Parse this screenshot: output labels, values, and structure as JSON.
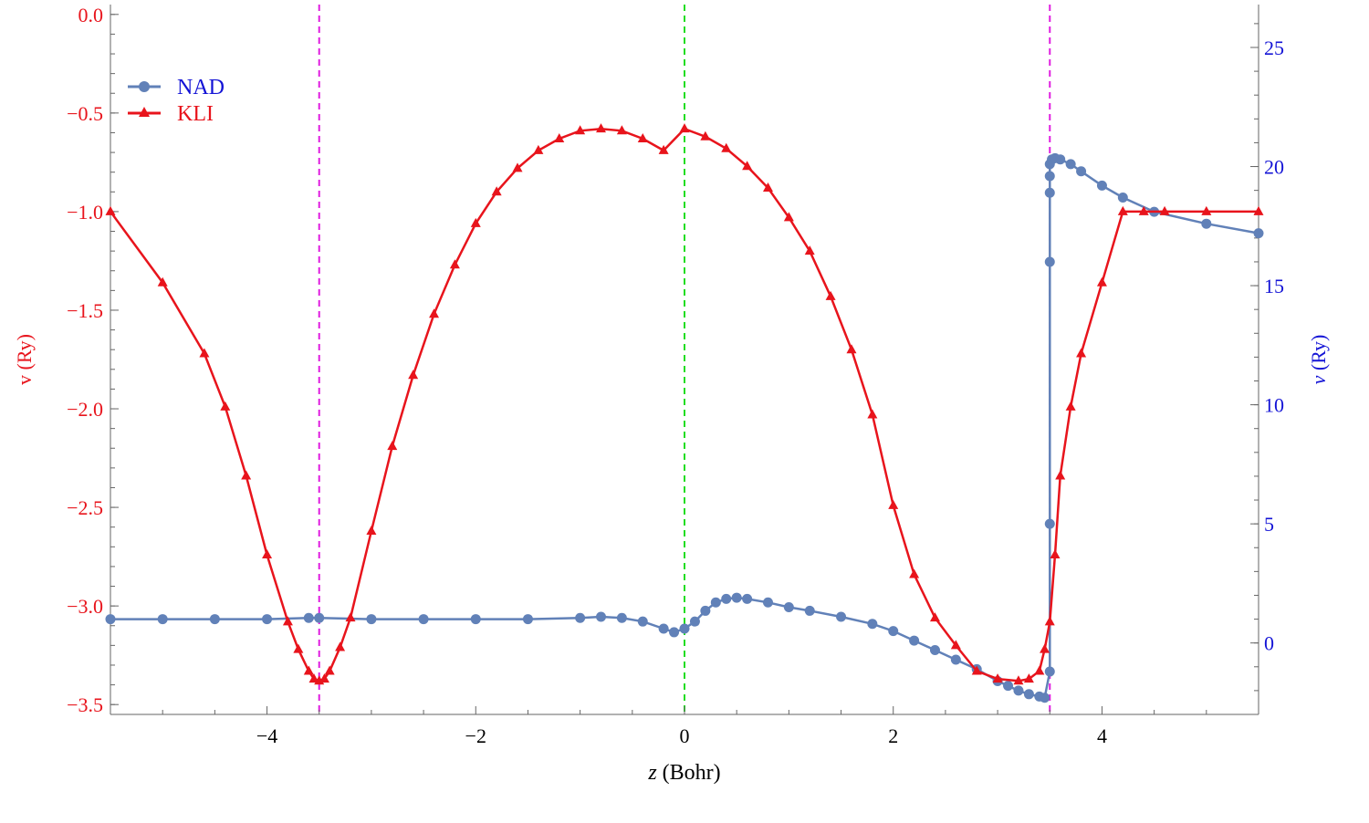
{
  "chart_data": {
    "type": "line",
    "xlabel_italic": "z",
    "xlabel_rest": " (Bohr)",
    "ylabel_left": "v (Ry)",
    "ylabel_right_italic": "v",
    "ylabel_right_rest": " (Ry)",
    "xlim": [
      -5.5,
      5.5
    ],
    "ylim_left": [
      -3.55,
      0.05
    ],
    "ylim_right": [
      -3.0,
      26.8
    ],
    "x_ticks": [
      -4,
      -2,
      0,
      2,
      4
    ],
    "x_tick_labels": [
      "−4",
      "−2",
      "0",
      "2",
      "4"
    ],
    "y_left_ticks": [
      0.0,
      -0.5,
      -1.0,
      -1.5,
      -2.0,
      -2.5,
      -3.0,
      -3.5
    ],
    "y_left_tick_labels": [
      "0.0",
      "−0.5",
      "−1.0",
      "−1.5",
      "−2.0",
      "−2.5",
      "−3.0",
      "−3.5"
    ],
    "y_right_ticks": [
      0,
      5,
      10,
      15,
      20,
      25
    ],
    "y_right_tick_labels": [
      "0",
      "5",
      "10",
      "15",
      "20",
      "25"
    ],
    "vertical_lines": [
      {
        "x": -3.5,
        "color": "#e01de0"
      },
      {
        "x": 0.0,
        "color": "#22dd22"
      },
      {
        "x": 3.5,
        "color": "#e01de0"
      }
    ],
    "legend": {
      "position": "top-left"
    },
    "series": [
      {
        "name": "NAD",
        "axis": "right",
        "color": "#6181b8",
        "marker": "circle",
        "x": [
          -5.5,
          -5.0,
          -4.5,
          -4.0,
          -3.6,
          -3.5,
          -3.0,
          -2.5,
          -2.0,
          -1.5,
          -1.0,
          -0.8,
          -0.6,
          -0.4,
          -0.2,
          -0.1,
          0.0,
          0.1,
          0.2,
          0.3,
          0.4,
          0.5,
          0.6,
          0.8,
          1.0,
          1.2,
          1.5,
          1.8,
          2.0,
          2.2,
          2.4,
          2.6,
          2.8,
          3.0,
          3.1,
          3.2,
          3.3,
          3.4,
          3.45,
          3.5,
          3.5,
          3.5,
          3.5,
          3.5,
          3.5,
          3.52,
          3.55,
          3.6,
          3.7,
          3.8,
          4.0,
          4.2,
          4.5,
          5.0,
          5.5
        ],
        "y": [
          1.0,
          1.0,
          1.0,
          1.0,
          1.05,
          1.05,
          1.0,
          1.0,
          1.0,
          1.0,
          1.05,
          1.1,
          1.05,
          0.9,
          0.6,
          0.45,
          0.6,
          0.9,
          1.35,
          1.7,
          1.85,
          1.9,
          1.85,
          1.7,
          1.5,
          1.35,
          1.1,
          0.8,
          0.5,
          0.1,
          -0.3,
          -0.7,
          -1.1,
          -1.6,
          -1.8,
          -2.0,
          -2.15,
          -2.25,
          -2.3,
          -1.2,
          5.0,
          16.0,
          18.9,
          19.6,
          20.1,
          20.3,
          20.35,
          20.3,
          20.1,
          19.8,
          19.2,
          18.7,
          18.1,
          17.6,
          17.2
        ]
      },
      {
        "name": "KLI",
        "axis": "left",
        "color": "#e8141c",
        "marker": "triangle",
        "x": [
          -5.5,
          -5.0,
          -4.6,
          -4.4,
          -4.2,
          -4.0,
          -3.8,
          -3.7,
          -3.6,
          -3.55,
          -3.5,
          -3.45,
          -3.4,
          -3.3,
          -3.2,
          -3.0,
          -2.8,
          -2.6,
          -2.4,
          -2.2,
          -2.0,
          -1.8,
          -1.6,
          -1.4,
          -1.2,
          -1.0,
          -0.8,
          -0.6,
          -0.4,
          -0.2,
          0.0,
          0.2,
          0.4,
          0.6,
          0.8,
          1.0,
          1.2,
          1.4,
          1.6,
          1.8,
          2.0,
          2.2,
          2.4,
          2.6,
          2.8,
          3.0,
          3.2,
          3.3,
          3.4,
          3.45,
          3.5,
          3.55,
          3.6,
          3.7,
          3.8,
          4.0,
          4.2,
          4.4,
          4.6,
          5.0,
          5.5
        ],
        "y": [
          -1.0,
          -1.36,
          -1.72,
          -1.99,
          -2.34,
          -2.74,
          -3.08,
          -3.22,
          -3.33,
          -3.37,
          -3.38,
          -3.37,
          -3.33,
          -3.21,
          -3.06,
          -2.62,
          -2.19,
          -1.83,
          -1.52,
          -1.27,
          -1.06,
          -0.9,
          -0.78,
          -0.69,
          -0.63,
          -0.59,
          -0.58,
          -0.59,
          -0.63,
          -0.69,
          -0.58,
          -0.62,
          -0.68,
          -0.77,
          -0.88,
          -1.03,
          -1.2,
          -1.43,
          -1.7,
          -2.03,
          -2.49,
          -2.84,
          -3.06,
          -3.2,
          -3.33,
          -3.37,
          -3.38,
          -3.37,
          -3.33,
          -3.22,
          -3.08,
          -2.74,
          -2.34,
          -1.99,
          -1.72,
          -1.36,
          -1.0,
          -1.0,
          -1.0,
          -1.0,
          -1.0
        ]
      }
    ]
  }
}
